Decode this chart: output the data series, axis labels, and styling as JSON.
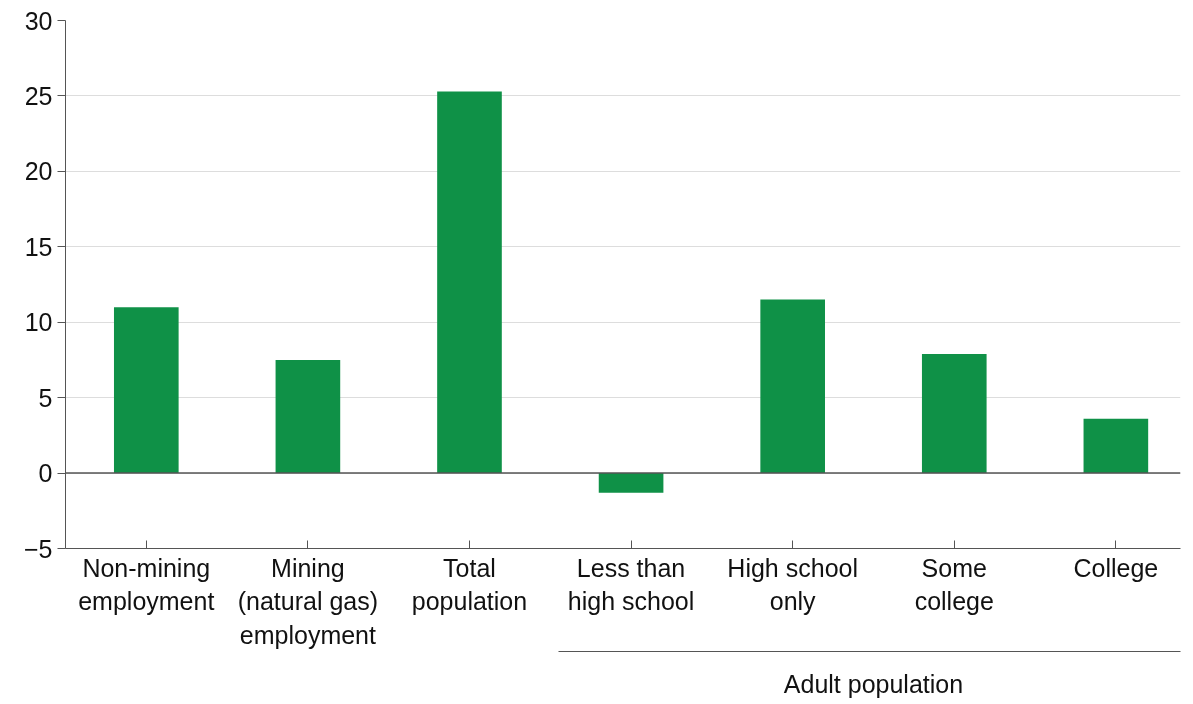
{
  "chart_data": {
    "type": "bar",
    "categories": [
      "Non-mining\nemployment",
      "Mining\n(natural gas)\nemployment",
      "Total\npopulation",
      "Less than\nhigh school",
      "High school\nonly",
      "Some\ncollege",
      "College"
    ],
    "values": [
      11.0,
      7.5,
      25.3,
      -1.3,
      11.5,
      7.9,
      3.6
    ],
    "color": "#0f9147",
    "ylim": [
      -5,
      30
    ],
    "yticks": [
      -5,
      0,
      5,
      10,
      15,
      20,
      25,
      30
    ],
    "grid": "y",
    "ref_lines": [
      {
        "axis": "y",
        "value": 0,
        "color": "#555555"
      }
    ],
    "annotations": [
      "Adult population"
    ]
  }
}
